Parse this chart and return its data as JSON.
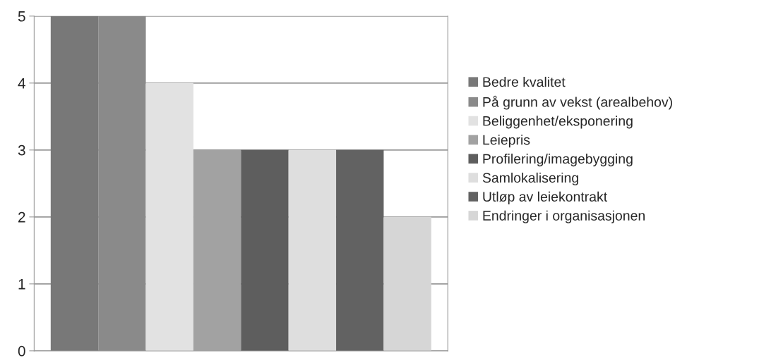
{
  "chart_data": {
    "type": "bar",
    "categories": [
      null
    ],
    "series": [
      {
        "name": "Bedre kvalitet",
        "color": "#787878",
        "values": [
          5
        ]
      },
      {
        "name": "På grunn av vekst (arealbehov)",
        "color": "#8a8a8a",
        "values": [
          5
        ]
      },
      {
        "name": "Beliggenhet/eksponering",
        "color": "#e2e2e2",
        "values": [
          4
        ]
      },
      {
        "name": "Leiepris",
        "color": "#a2a2a2",
        "values": [
          3
        ]
      },
      {
        "name": "Profilering/imagebygging",
        "color": "#5e5e5e",
        "values": [
          3
        ]
      },
      {
        "name": "Samlokalisering",
        "color": "#dedede",
        "values": [
          3
        ]
      },
      {
        "name": "Utløp av leiekontrakt",
        "color": "#626262",
        "values": [
          3
        ]
      },
      {
        "name": "Endringer i organisasjonen",
        "color": "#d6d6d6",
        "values": [
          2
        ]
      }
    ],
    "ylim": [
      0,
      5
    ],
    "yticks": [
      0,
      1,
      2,
      3,
      4,
      5
    ],
    "grid": "y",
    "legend": "right"
  }
}
